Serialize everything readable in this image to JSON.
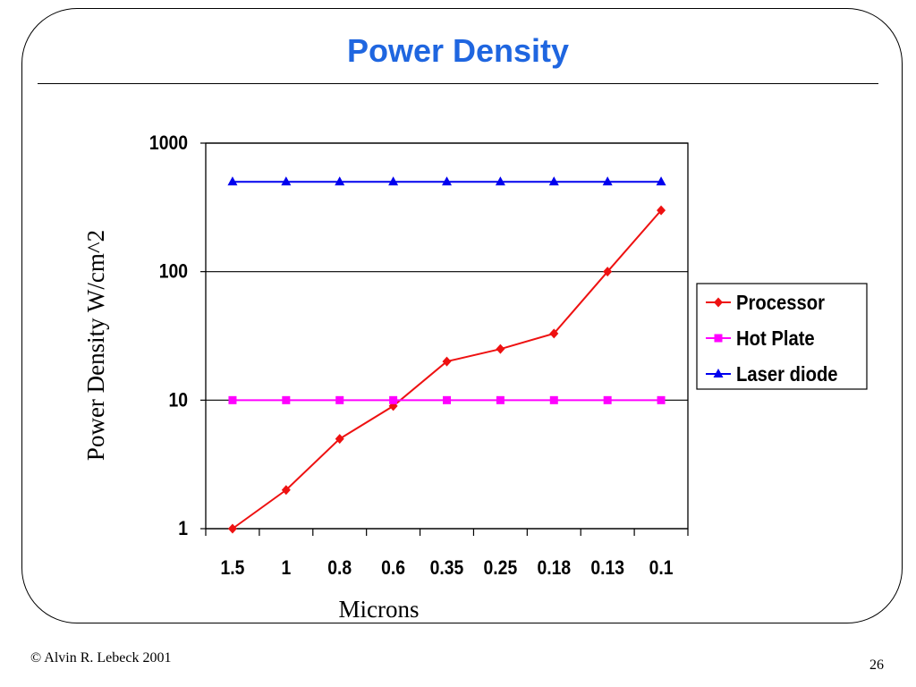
{
  "slide": {
    "title": "Power Density",
    "footer": "© Alvin R. Lebeck 2001",
    "page_number": "26"
  },
  "chart_data": {
    "type": "line",
    "title": "",
    "xlabel": "Microns",
    "ylabel": "Power Density W/cm^2",
    "yscale": "log",
    "ylim": [
      1,
      1000
    ],
    "yticks": [
      1,
      10,
      100,
      1000
    ],
    "ytick_labels": [
      "1",
      "10",
      "100",
      "1000"
    ],
    "grid": "horizontal major lines",
    "legend_position": "right",
    "categories": [
      "1.5",
      "1",
      "0.8",
      "0.6",
      "0.35",
      "0.25",
      "0.18",
      "0.13",
      "0.1"
    ],
    "series": [
      {
        "name": "Processor",
        "color": "#ee1111",
        "marker": "diamond",
        "values": [
          1,
          2,
          5,
          9,
          20,
          25,
          33,
          100,
          300
        ]
      },
      {
        "name": "Hot Plate",
        "color": "#ff00ff",
        "marker": "square",
        "values": [
          10,
          10,
          10,
          10,
          10,
          10,
          10,
          10,
          10
        ]
      },
      {
        "name": "Laser diode",
        "color": "#0000ee",
        "marker": "triangle",
        "values": [
          500,
          500,
          500,
          500,
          500,
          500,
          500,
          500,
          500
        ]
      }
    ]
  }
}
